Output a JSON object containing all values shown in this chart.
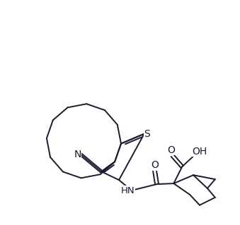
{
  "bg_color": "#ffffff",
  "line_color": "#1a1a2e",
  "line_width": 1.4,
  "text_color": "#1a1a2e",
  "figsize": [
    3.39,
    3.19
  ],
  "dpi": 100,
  "labels": {
    "S": "S",
    "N": "N",
    "O": "O",
    "HN": "HN",
    "OH": "OH"
  }
}
